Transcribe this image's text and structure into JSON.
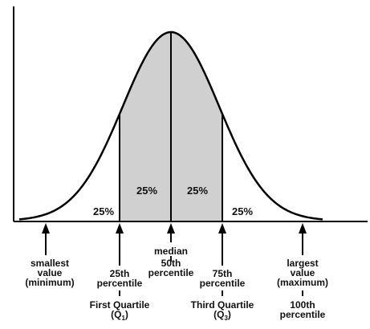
{
  "curve": {
    "fill_color": "#d0d0d0",
    "line_color": "#000000"
  },
  "regions": [
    {
      "label": "25%"
    },
    {
      "label": "25%"
    },
    {
      "label": "25%"
    },
    {
      "label": "25%"
    }
  ],
  "markers": [
    {
      "lines": [
        "smallest",
        "value",
        "(minimum)"
      ],
      "sub_lines": []
    },
    {
      "lines": [
        "25th",
        "percentile"
      ],
      "sub_lines": [
        "First Quartile",
        "(Q",
        "1",
        ")"
      ]
    },
    {
      "lines": [
        "median",
        "50th",
        "percentile"
      ],
      "sub_lines": []
    },
    {
      "lines": [
        "75th",
        "percentile"
      ],
      "sub_lines": [
        "Third Quartile",
        "(Q",
        "3",
        ")"
      ]
    },
    {
      "lines": [
        "largest",
        "value",
        "(maximum)"
      ],
      "sub_lines": [
        "100th",
        "percentile"
      ]
    }
  ]
}
